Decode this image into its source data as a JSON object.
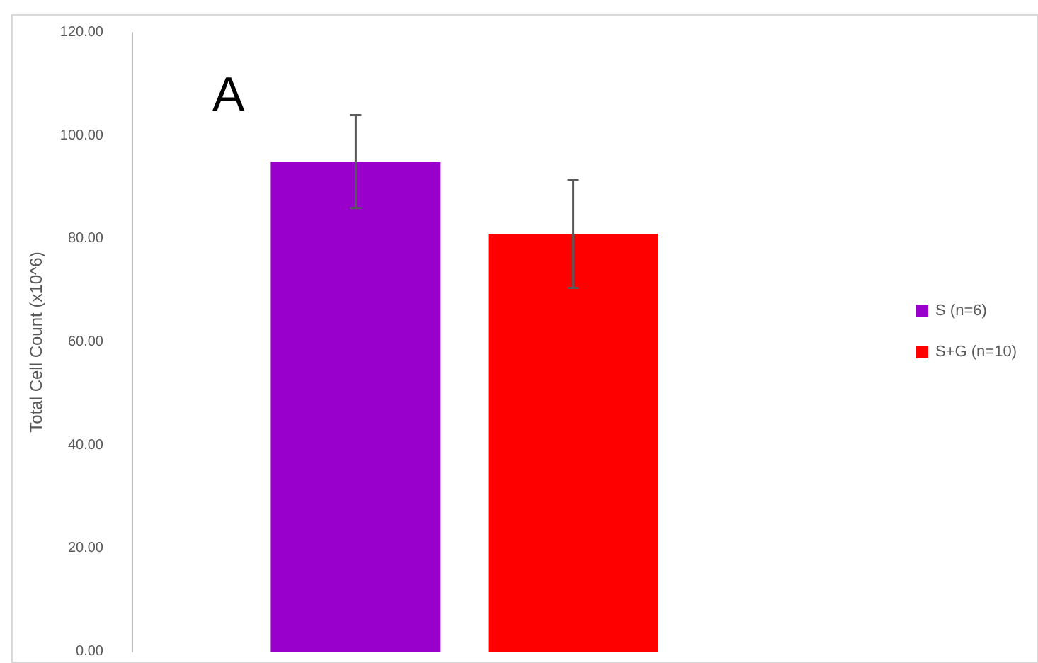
{
  "chart_data": {
    "type": "bar",
    "ylabel": "Total Cell Count (x10^6)",
    "annotations": [
      "A"
    ],
    "categories": [
      null
    ],
    "series": [
      {
        "name": "S (n=6)",
        "color": "#9900cc",
        "values": [
          95
        ],
        "errors": [
          9
        ]
      },
      {
        "name": "S+G (n=10)",
        "color": "#ff0000",
        "values": [
          81
        ],
        "errors": [
          10.5
        ]
      }
    ],
    "ylim": [
      0,
      120
    ],
    "yticks": [
      {
        "value": 0,
        "label": "0.00"
      },
      {
        "value": 20,
        "label": "20.00"
      },
      {
        "value": 40,
        "label": "40.00"
      },
      {
        "value": 60,
        "label": "60.00"
      },
      {
        "value": 80,
        "label": "80.00"
      },
      {
        "value": 100,
        "label": "100.00"
      },
      {
        "value": 120,
        "label": "120.00"
      }
    ],
    "grid": false,
    "legend": "right"
  }
}
